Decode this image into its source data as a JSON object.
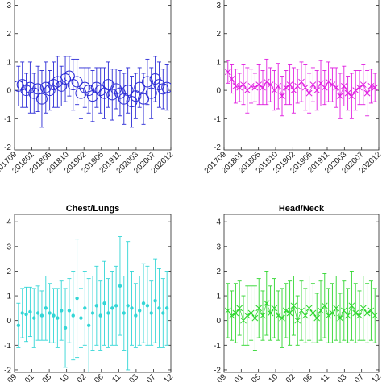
{
  "chart_data": [
    {
      "id": "top-left",
      "type": "errorbar",
      "title": "",
      "marker": "circle",
      "color": "#2b2bd6",
      "ylim": [
        -2.1,
        3.3
      ],
      "yticks": [
        "-2",
        "-1",
        "0",
        "1",
        "2",
        "3"
      ],
      "xlim": [
        0,
        40
      ],
      "xtick_labels": [
        "201709",
        "201801",
        "201805",
        "201810",
        "201902",
        "201906",
        "201911",
        "202003",
        "202007",
        "202012"
      ],
      "x": [
        1,
        2,
        3,
        4,
        5,
        6,
        7,
        8,
        9,
        10,
        11,
        12,
        13,
        14,
        15,
        16,
        17,
        18,
        19,
        20,
        21,
        22,
        23,
        24,
        25,
        26,
        27,
        28,
        29,
        30,
        31,
        32,
        33,
        34,
        35,
        36,
        37,
        38,
        39
      ],
      "y": [
        0.15,
        0.2,
        0.0,
        0.1,
        -0.1,
        0.05,
        -0.3,
        0.1,
        0.0,
        0.2,
        0.3,
        0.15,
        0.4,
        0.5,
        0.2,
        0.3,
        -0.1,
        0.1,
        0.0,
        -0.2,
        0.1,
        0.0,
        -0.1,
        0.2,
        -0.15,
        0.05,
        -0.1,
        -0.3,
        0.0,
        -0.4,
        -0.2,
        0.1,
        -0.3,
        0.3,
        -0.1,
        0.4,
        0.2,
        0.05,
        0.1
      ],
      "err": [
        0.7,
        0.8,
        0.6,
        0.9,
        0.7,
        0.8,
        1.0,
        0.9,
        0.7,
        0.8,
        0.9,
        0.7,
        0.8,
        0.7,
        0.9,
        0.8,
        0.9,
        0.7,
        0.8,
        0.9,
        0.7,
        0.8,
        0.9,
        0.8,
        0.9,
        0.7,
        0.8,
        0.9,
        0.8,
        0.9,
        0.8,
        0.7,
        0.9,
        0.8,
        0.9,
        0.8,
        0.8,
        0.7,
        0.8
      ]
    },
    {
      "id": "top-right",
      "type": "errorbar",
      "title": "",
      "marker": "x",
      "color": "#e01ee0",
      "ylim": [
        -2.1,
        3.3
      ],
      "yticks": [
        "-2",
        "-1",
        "0",
        "1",
        "2",
        "3"
      ],
      "xlim": [
        0,
        40
      ],
      "xtick_labels": [
        "201709",
        "201801",
        "201805",
        "201810",
        "201902",
        "201906",
        "201911",
        "202003",
        "202007",
        "202012"
      ],
      "x": [
        1,
        2,
        3,
        4,
        5,
        6,
        7,
        8,
        9,
        10,
        11,
        12,
        13,
        14,
        15,
        16,
        17,
        18,
        19,
        20,
        21,
        22,
        23,
        24,
        25,
        26,
        27,
        28,
        29,
        30,
        31,
        32,
        33,
        34,
        35,
        36,
        37,
        38,
        39
      ],
      "y": [
        0.65,
        0.4,
        0.15,
        0.1,
        0.2,
        0.0,
        0.15,
        0.1,
        0.2,
        0.1,
        0.3,
        0.2,
        0.0,
        0.15,
        -0.2,
        0.1,
        0.2,
        0.0,
        0.15,
        0.3,
        0.1,
        -0.1,
        0.2,
        0.0,
        0.25,
        0.1,
        0.3,
        0.2,
        0.1,
        -0.2,
        0.15,
        -0.1,
        -0.2,
        0.0,
        0.1,
        0.2,
        -0.1,
        0.15,
        0.1
      ],
      "err": [
        0.4,
        0.5,
        0.6,
        0.5,
        0.7,
        0.8,
        0.6,
        0.5,
        0.7,
        0.6,
        0.8,
        0.6,
        0.7,
        0.8,
        0.7,
        0.6,
        0.7,
        0.8,
        0.6,
        0.7,
        0.8,
        0.7,
        0.6,
        0.7,
        0.8,
        0.6,
        0.7,
        0.6,
        0.7,
        0.8,
        0.7,
        0.6,
        0.8,
        0.7,
        0.6,
        0.7,
        0.8,
        0.6,
        0.5
      ]
    },
    {
      "id": "bottom-left",
      "type": "errorbar",
      "title": "Chest/Lungs",
      "marker": "dot",
      "color": "#33d6d6",
      "ylim": [
        -2.1,
        4.3
      ],
      "yticks": [
        "-2",
        "-1",
        "0",
        "1",
        "2",
        "3",
        "4"
      ],
      "xlim": [
        0,
        40
      ],
      "xtick_labels": [
        "09",
        "01",
        "05",
        "10",
        "02",
        "06",
        "11",
        "03",
        "07",
        "12"
      ],
      "x": [
        1,
        2,
        3,
        4,
        5,
        6,
        7,
        8,
        9,
        10,
        11,
        12,
        13,
        14,
        15,
        16,
        17,
        18,
        19,
        20,
        21,
        22,
        23,
        24,
        25,
        26,
        27,
        28,
        29,
        30,
        31,
        32,
        33,
        34,
        35,
        36,
        37,
        38,
        39
      ],
      "y": [
        -0.2,
        0.3,
        0.25,
        0.35,
        0.1,
        0.3,
        0.2,
        0.5,
        0.3,
        0.2,
        0.1,
        0.4,
        -0.3,
        0.4,
        0.2,
        0.9,
        0.1,
        0.5,
        -0.2,
        0.3,
        0.6,
        0.2,
        0.7,
        0.3,
        0.5,
        0.6,
        1.4,
        0.3,
        0.6,
        0.5,
        0.2,
        0.4,
        0.7,
        0.6,
        0.3,
        0.8,
        0.5,
        0.3,
        0.5
      ],
      "err": [
        0.9,
        1.0,
        1.1,
        1.0,
        1.2,
        1.1,
        1.0,
        1.3,
        1.2,
        1.1,
        1.2,
        1.2,
        1.6,
        1.3,
        1.8,
        2.4,
        1.2,
        1.5,
        1.9,
        1.5,
        1.6,
        1.4,
        1.7,
        1.4,
        1.5,
        1.6,
        2.0,
        1.5,
        2.6,
        1.5,
        1.3,
        1.4,
        1.6,
        1.6,
        1.3,
        1.7,
        1.6,
        1.4,
        1.5
      ]
    },
    {
      "id": "bottom-right",
      "type": "errorbar",
      "title": "Head/Neck",
      "marker": "x",
      "color": "#2ed62e",
      "ylim": [
        -2.1,
        4.3
      ],
      "yticks": [
        "-2",
        "-1",
        "0",
        "1",
        "2",
        "3",
        "4"
      ],
      "xlim": [
        0,
        40
      ],
      "xtick_labels": [
        "09",
        "01",
        "05",
        "10",
        "02",
        "06",
        "11",
        "03",
        "07",
        "12"
      ],
      "x": [
        1,
        2,
        3,
        4,
        5,
        6,
        7,
        8,
        9,
        10,
        11,
        12,
        13,
        14,
        15,
        16,
        17,
        18,
        19,
        20,
        21,
        22,
        23,
        24,
        25,
        26,
        27,
        28,
        29,
        30,
        31,
        32,
        33,
        34,
        35,
        36,
        37,
        38,
        39
      ],
      "y": [
        0.4,
        0.2,
        0.3,
        0.5,
        0.0,
        0.2,
        0.3,
        0.1,
        0.5,
        0.2,
        0.7,
        0.3,
        0.5,
        0.2,
        0.1,
        0.4,
        0.3,
        0.6,
        0.0,
        0.4,
        0.2,
        0.5,
        0.3,
        0.1,
        0.4,
        0.6,
        0.2,
        0.3,
        0.5,
        0.1,
        0.4,
        0.2,
        0.6,
        0.3,
        0.2,
        0.5,
        0.3,
        0.4,
        0.2
      ],
      "err": [
        1.1,
        1.0,
        1.2,
        1.1,
        1.0,
        1.2,
        1.1,
        1.3,
        1.2,
        1.0,
        1.3,
        1.1,
        1.2,
        1.0,
        1.2,
        1.1,
        1.3,
        1.2,
        1.0,
        1.2,
        1.1,
        1.3,
        1.2,
        1.0,
        1.2,
        1.3,
        1.1,
        1.2,
        1.3,
        1.0,
        1.2,
        1.1,
        1.4,
        1.2,
        1.0,
        1.3,
        1.2,
        1.2,
        1.1
      ]
    }
  ]
}
